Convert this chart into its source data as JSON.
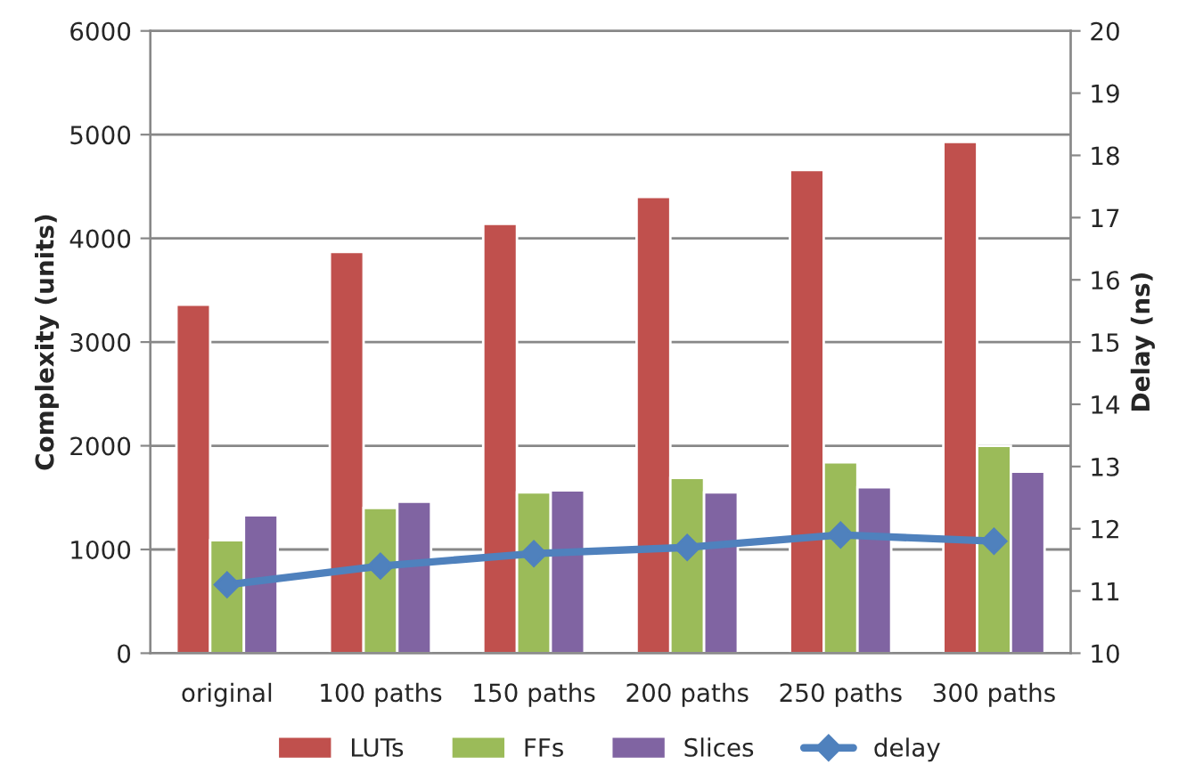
{
  "chart_data": {
    "type": "bar",
    "ylabel": "Complexity (units)",
    "y2label": "Delay (ns)",
    "categories": [
      "original",
      "100 paths",
      "150 paths",
      "200 paths",
      "250 paths",
      "300 paths"
    ],
    "series": [
      {
        "name": "LUTs",
        "color": "#c0504d",
        "values": [
          3360,
          3870,
          4140,
          4400,
          4660,
          4930
        ]
      },
      {
        "name": "FFs",
        "color": "#9bbb59",
        "values": [
          1090,
          1400,
          1550,
          1690,
          1840,
          2000
        ]
      },
      {
        "name": "Slices",
        "color": "#8064a2",
        "values": [
          1330,
          1460,
          1570,
          1550,
          1600,
          1750
        ]
      },
      {
        "name": "delay",
        "type": "line",
        "axis": "y2",
        "color": "#4f81bd",
        "marker": "diamond",
        "values": [
          11.1,
          11.4,
          11.6,
          11.7,
          11.9,
          11.8
        ]
      }
    ],
    "ylim": [
      0,
      6000
    ],
    "yticks": [
      0,
      1000,
      2000,
      3000,
      4000,
      5000,
      6000
    ],
    "y2lim": [
      10,
      20
    ],
    "y2ticks": [
      10,
      11,
      12,
      13,
      14,
      15,
      16,
      17,
      18,
      19,
      20
    ],
    "grid": "y",
    "legend": "bottom"
  }
}
